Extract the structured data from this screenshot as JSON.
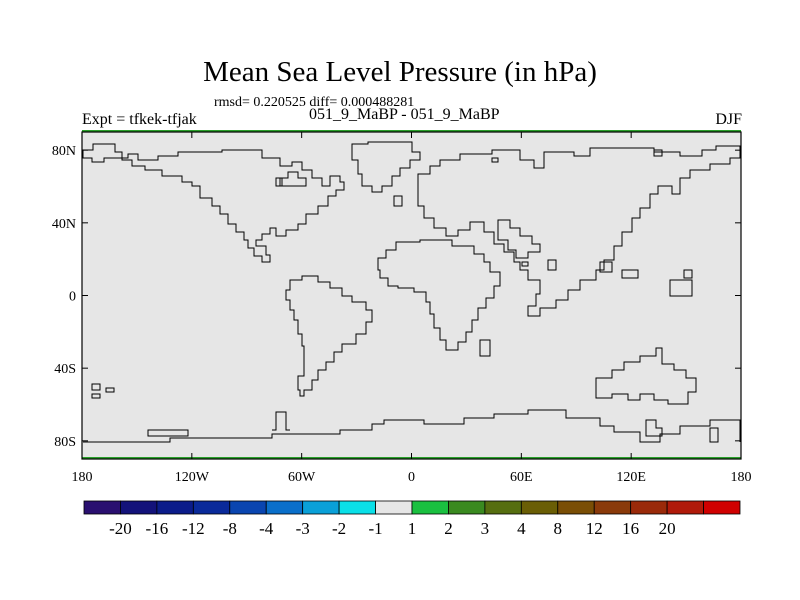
{
  "title": "Mean Sea Level Pressure (in hPa)",
  "stats": "rmsd= 0.220525 diff= 0.000488281",
  "left_label": "Expt = tfkek-tfjak",
  "center_label": "051_9_MaBP - 051_9_MaBP",
  "right_label": "DJF",
  "map": {
    "projection": "cylindrical-equidistant",
    "lon_range": [
      -180,
      180
    ],
    "lat_range": [
      -90,
      90
    ],
    "fill_color": "#e6e6e6",
    "x_ticks": [
      {
        "lon": -180,
        "label": "180"
      },
      {
        "lon": -120,
        "label": "120W"
      },
      {
        "lon": -60,
        "label": "60W"
      },
      {
        "lon": 0,
        "label": "0"
      },
      {
        "lon": 60,
        "label": "60E"
      },
      {
        "lon": 120,
        "label": "120E"
      },
      {
        "lon": 180,
        "label": "180"
      }
    ],
    "y_ticks": [
      {
        "lat": 80,
        "label": "80N"
      },
      {
        "lat": 40,
        "label": "40N"
      },
      {
        "lat": 0,
        "label": "0"
      },
      {
        "lat": -40,
        "label": "40S"
      },
      {
        "lat": -80,
        "label": "80S"
      }
    ]
  },
  "colorbar": {
    "colors": [
      "#2a1070",
      "#13127a",
      "#0b1c8a",
      "#0a2a9a",
      "#0a45b0",
      "#0a6fca",
      "#0aa0d8",
      "#0ae0e8",
      "#e6e6e6",
      "#1ac040",
      "#3a8a20",
      "#566e10",
      "#6a5e05",
      "#7a4e05",
      "#8a3a0a",
      "#9a2a0a",
      "#b01a0a",
      "#d00000"
    ],
    "labels": [
      "-20",
      "-16",
      "-12",
      "-8",
      "-4",
      "-3",
      "-2",
      "-1",
      "1",
      "2",
      "3",
      "4",
      "8",
      "12",
      "16",
      "20"
    ]
  }
}
